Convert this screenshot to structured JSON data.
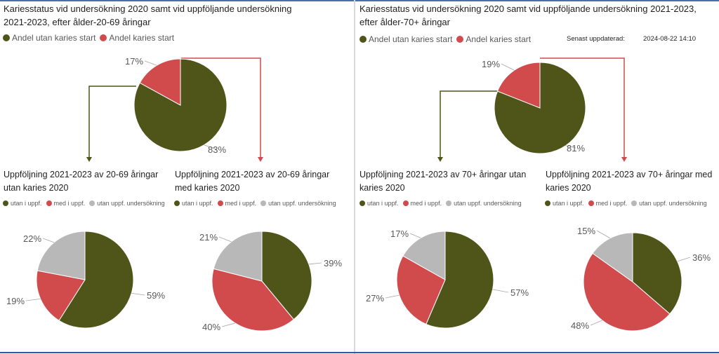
{
  "colors": {
    "olive": "#4f5518",
    "red": "#d14b4d",
    "gray": "#b8b8b8",
    "arrow_olive": "#4f5518",
    "arrow_red": "#d14b4d"
  },
  "last_updated": {
    "label": "Senast uppdaterad:",
    "value": "2024-08-22 14:10"
  },
  "panels": [
    {
      "title_line1": "Kariesstatus vid undersökning 2020 samt vid uppföljande undersökning",
      "title_line2": "2021-2023, efter ålder-20-69 åringar",
      "legend": [
        "Andel utan karies start",
        "Andel karies start"
      ],
      "sub_left": {
        "title_line1": "Uppföljning 2021-2023 av 20-69 åringar",
        "title_line2": "utan karies 2020",
        "legend": [
          "utan i uppf.",
          "med i uppf.",
          "utan uppf. undersökning"
        ]
      },
      "sub_right": {
        "title_line1": "Uppföljning 2021-2023 av 20-69 åringar",
        "title_line2": "med karies 2020",
        "legend": [
          "utan i uppf.",
          "med i uppf.",
          "utan uppf. undersökning"
        ]
      }
    },
    {
      "title_line1": "Kariesstatus vid undersökning 2020 samt vid uppföljande undersökning 2021-2023,",
      "title_line2": "efter ålder-70+ åringar",
      "legend": [
        "Andel utan karies start",
        "Andel karies start"
      ],
      "sub_left": {
        "title_line1": "Uppföljning 2021-2023 av 70+ åringar utan",
        "title_line2": "karies 2020",
        "legend": [
          "utan i uppf.",
          "med i uppf.",
          "utan uppf. undersökning"
        ]
      },
      "sub_right": {
        "title_line1": "Uppföljning 2021-2023 av 70+ åringar med",
        "title_line2": "karies 2020",
        "legend": [
          "utan i uppf.",
          "med i uppf.",
          "utan uppf. undersökning"
        ]
      }
    }
  ],
  "chart_data": [
    {
      "type": "pie",
      "id": "p1-main",
      "labels": [
        "Andel utan karies start",
        "Andel karies start"
      ],
      "values": [
        83,
        17
      ],
      "value_labels": [
        "83%",
        "17%"
      ]
    },
    {
      "type": "pie",
      "id": "p1-left",
      "labels": [
        "utan i uppf.",
        "med i uppf.",
        "utan uppf. undersökning"
      ],
      "values": [
        59,
        19,
        22
      ],
      "value_labels": [
        "59%",
        "19%",
        "22%"
      ]
    },
    {
      "type": "pie",
      "id": "p1-right",
      "labels": [
        "utan i uppf.",
        "med i uppf.",
        "utan uppf. undersökning"
      ],
      "values": [
        39,
        40,
        21
      ],
      "value_labels": [
        "39%",
        "40%",
        "21%"
      ]
    },
    {
      "type": "pie",
      "id": "p2-main",
      "labels": [
        "Andel utan karies start",
        "Andel karies start"
      ],
      "values": [
        81,
        19
      ],
      "value_labels": [
        "81%",
        "19%"
      ]
    },
    {
      "type": "pie",
      "id": "p2-left",
      "labels": [
        "utan i uppf.",
        "med i uppf.",
        "utan uppf. undersökning"
      ],
      "values": [
        57,
        27,
        17
      ],
      "value_labels": [
        "57%",
        "27%",
        "17%"
      ]
    },
    {
      "type": "pie",
      "id": "p2-right",
      "labels": [
        "utan i uppf.",
        "med i uppf.",
        "utan uppf. undersökning"
      ],
      "values": [
        36,
        48,
        15
      ],
      "value_labels": [
        "36%",
        "48%",
        "15%"
      ]
    }
  ]
}
